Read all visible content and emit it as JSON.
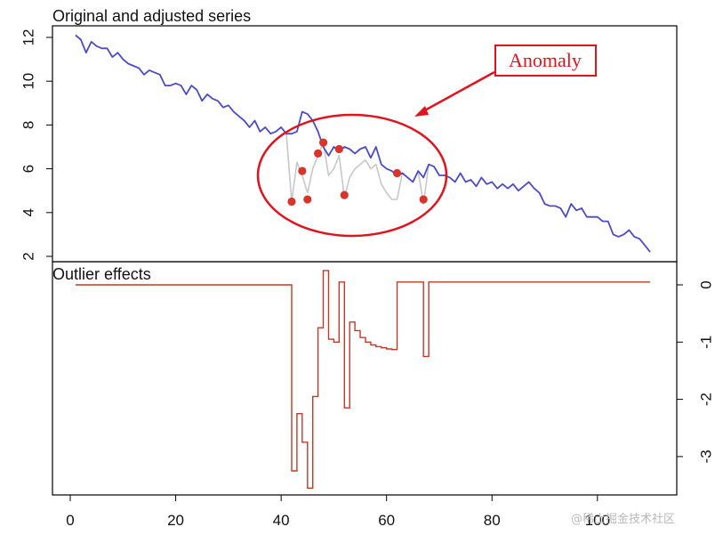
{
  "chart_data": [
    {
      "type": "line",
      "title": "Original and adjusted series",
      "xlim": [
        0,
        113
      ],
      "ylim": [
        1.8,
        12.5
      ],
      "yticks": [
        2,
        4,
        6,
        8,
        10,
        12
      ],
      "y_tick_labels": [
        "2",
        "4",
        "6",
        "8",
        "10",
        "12"
      ],
      "grid": false,
      "series": [
        {
          "color": "#4b4bc8",
          "values": [
            [
              1,
              12.1
            ],
            [
              2,
              11.9
            ],
            [
              3,
              11.3
            ],
            [
              4,
              11.8
            ],
            [
              5,
              11.6
            ],
            [
              6,
              11.5
            ],
            [
              7,
              11.5
            ],
            [
              8,
              11.1
            ],
            [
              9,
              11.3
            ],
            [
              10,
              11.0
            ],
            [
              11,
              10.8
            ],
            [
              12,
              10.7
            ],
            [
              13,
              10.6
            ],
            [
              14,
              10.3
            ],
            [
              15,
              10.5
            ],
            [
              16,
              10.4
            ],
            [
              17,
              10.3
            ],
            [
              18,
              9.8
            ],
            [
              19,
              9.8
            ],
            [
              20,
              9.9
            ],
            [
              21,
              9.8
            ],
            [
              22,
              9.4
            ],
            [
              23,
              9.8
            ],
            [
              24,
              9.6
            ],
            [
              25,
              9.1
            ],
            [
              26,
              9.4
            ],
            [
              27,
              9.2
            ],
            [
              28,
              9.1
            ],
            [
              29,
              8.8
            ],
            [
              30,
              8.9
            ],
            [
              31,
              8.6
            ],
            [
              32,
              8.4
            ],
            [
              33,
              8.2
            ],
            [
              34,
              7.9
            ],
            [
              35,
              8.2
            ],
            [
              36,
              7.7
            ],
            [
              37,
              7.9
            ],
            [
              38,
              7.6
            ],
            [
              39,
              7.7
            ],
            [
              40,
              7.9
            ],
            [
              41,
              7.6
            ],
            [
              42,
              7.6
            ],
            [
              43,
              7.7
            ],
            [
              44,
              8.6
            ],
            [
              45,
              8.5
            ],
            [
              46,
              8.2
            ],
            [
              47,
              7.7
            ],
            [
              48,
              7.0
            ],
            [
              49,
              6.6
            ],
            [
              50,
              7.0
            ],
            [
              51,
              6.8
            ],
            [
              52,
              7.0
            ],
            [
              53,
              6.9
            ],
            [
              54,
              6.7
            ],
            [
              55,
              6.9
            ],
            [
              56,
              7.0
            ],
            [
              57,
              6.5
            ],
            [
              58,
              7.0
            ],
            [
              59,
              6.2
            ],
            [
              60,
              6.0
            ],
            [
              61,
              5.9
            ],
            [
              62,
              5.7
            ],
            [
              63,
              5.8
            ],
            [
              64,
              5.6
            ],
            [
              65,
              5.4
            ],
            [
              66,
              5.9
            ],
            [
              67,
              5.6
            ],
            [
              68,
              6.2
            ],
            [
              69,
              6.1
            ],
            [
              70,
              5.7
            ],
            [
              71,
              5.7
            ],
            [
              72,
              5.6
            ],
            [
              73,
              5.4
            ],
            [
              74,
              5.8
            ],
            [
              75,
              5.4
            ],
            [
              76,
              5.5
            ],
            [
              77,
              5.2
            ],
            [
              78,
              5.6
            ],
            [
              79,
              5.3
            ],
            [
              80,
              5.4
            ],
            [
              81,
              5.1
            ],
            [
              82,
              5.3
            ],
            [
              83,
              5.1
            ],
            [
              84,
              5.3
            ],
            [
              85,
              5.0
            ],
            [
              86,
              5.2
            ],
            [
              87,
              5.4
            ],
            [
              88,
              5.1
            ],
            [
              89,
              4.9
            ],
            [
              90,
              4.4
            ],
            [
              91,
              4.3
            ],
            [
              92,
              4.3
            ],
            [
              93,
              4.2
            ],
            [
              94,
              3.8
            ],
            [
              95,
              4.4
            ],
            [
              96,
              4.1
            ],
            [
              97,
              4.2
            ],
            [
              98,
              3.8
            ],
            [
              99,
              3.8
            ],
            [
              100,
              3.8
            ],
            [
              101,
              3.6
            ],
            [
              102,
              3.6
            ],
            [
              103,
              3.0
            ],
            [
              104,
              2.9
            ],
            [
              105,
              3.0
            ],
            [
              106,
              3.2
            ],
            [
              107,
              2.9
            ],
            [
              108,
              2.8
            ],
            [
              109,
              2.5
            ],
            [
              110,
              2.2
            ]
          ]
        },
        {
          "color": "#c8c8c8",
          "values": [
            [
              41,
              7.6
            ],
            [
              42,
              4.5
            ],
            [
              43,
              6.3
            ],
            [
              44,
              5.7
            ],
            [
              45,
              4.9
            ],
            [
              46,
              6.0
            ],
            [
              47,
              6.6
            ],
            [
              48,
              7.2
            ],
            [
              49,
              5.7
            ],
            [
              50,
              6.0
            ],
            [
              51,
              6.6
            ],
            [
              52,
              4.7
            ],
            [
              53,
              5.6
            ],
            [
              54,
              6.0
            ],
            [
              55,
              6.2
            ],
            [
              56,
              6.4
            ],
            [
              57,
              6.0
            ],
            [
              58,
              6.2
            ],
            [
              59,
              5.3
            ],
            [
              60,
              4.9
            ],
            [
              61,
              4.6
            ],
            [
              62,
              4.6
            ],
            [
              63,
              5.8
            ],
            [
              64,
              5.6
            ],
            [
              65,
              5.4
            ],
            [
              66,
              5.9
            ],
            [
              67,
              4.4
            ],
            [
              68,
              6.2
            ]
          ]
        }
      ],
      "points": {
        "color": "#d9342b",
        "values": [
          [
            42,
            4.5
          ],
          [
            44,
            5.9
          ],
          [
            45,
            4.6
          ],
          [
            47,
            6.7
          ],
          [
            48,
            7.2
          ],
          [
            51,
            6.9
          ],
          [
            52,
            4.8
          ],
          [
            62,
            5.8
          ],
          [
            67,
            4.6
          ]
        ]
      },
      "annotation": {
        "text": "Anomaly",
        "color": "#e0141e"
      }
    },
    {
      "type": "line",
      "title": "Outlier effects",
      "xlim": [
        0,
        113
      ],
      "ylim": [
        -3.6,
        0.25
      ],
      "xticks": [
        0,
        20,
        40,
        60,
        80,
        100
      ],
      "x_tick_labels": [
        "0",
        "20",
        "40",
        "60",
        "80",
        "100"
      ],
      "yticks": [
        0,
        -1,
        -2,
        -3
      ],
      "y_tick_labels": [
        "0",
        "-1",
        "-2",
        "-3"
      ],
      "grid": false,
      "series": [
        {
          "color": "#c0392b",
          "values": [
            [
              1,
              0.0
            ],
            [
              42,
              0.0
            ],
            [
              42,
              -3.25
            ],
            [
              43,
              -3.25
            ],
            [
              43,
              -2.25
            ],
            [
              44,
              -2.25
            ],
            [
              44,
              -2.75
            ],
            [
              45,
              -2.75
            ],
            [
              45,
              -3.55
            ],
            [
              46,
              -3.55
            ],
            [
              46,
              -1.95
            ],
            [
              47,
              -1.95
            ],
            [
              47,
              -0.75
            ],
            [
              48,
              -0.75
            ],
            [
              48,
              0.25
            ],
            [
              49,
              0.25
            ],
            [
              49,
              -0.95
            ],
            [
              50,
              -0.95
            ],
            [
              50,
              -1.0
            ],
            [
              51,
              -1.0
            ],
            [
              51,
              0.05
            ],
            [
              52,
              0.05
            ],
            [
              52,
              -2.15
            ],
            [
              53,
              -2.15
            ],
            [
              53,
              -0.65
            ],
            [
              54,
              -0.65
            ],
            [
              54,
              -0.8
            ],
            [
              55,
              -0.8
            ],
            [
              55,
              -0.92
            ],
            [
              56,
              -0.92
            ],
            [
              56,
              -1.0
            ],
            [
              57,
              -1.0
            ],
            [
              57,
              -1.05
            ],
            [
              58,
              -1.05
            ],
            [
              58,
              -1.08
            ],
            [
              59,
              -1.08
            ],
            [
              59,
              -1.1
            ],
            [
              60,
              -1.1
            ],
            [
              60,
              -1.12
            ],
            [
              61,
              -1.12
            ],
            [
              61,
              -1.13
            ],
            [
              62,
              -1.13
            ],
            [
              62,
              0.05
            ],
            [
              67,
              0.05
            ],
            [
              67,
              -1.25
            ],
            [
              68,
              -1.25
            ],
            [
              68,
              0.05
            ],
            [
              110,
              0.05
            ]
          ]
        }
      ]
    }
  ],
  "watermark": "@稀土掘金技术社区"
}
